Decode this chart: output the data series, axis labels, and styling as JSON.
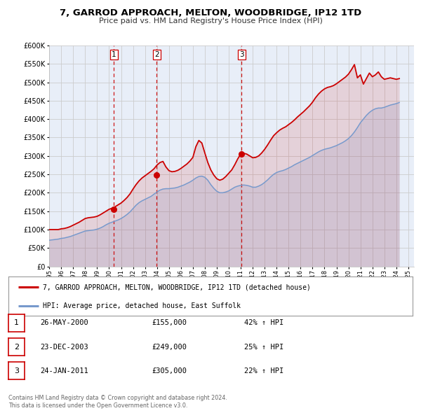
{
  "title": "7, GARROD APPROACH, MELTON, WOODBRIDGE, IP12 1TD",
  "subtitle": "Price paid vs. HM Land Registry's House Price Index (HPI)",
  "ylim": [
    0,
    600000
  ],
  "yticks": [
    0,
    50000,
    100000,
    150000,
    200000,
    250000,
    300000,
    350000,
    400000,
    450000,
    500000,
    550000,
    600000
  ],
  "xlim_start": 1995.0,
  "xlim_end": 2025.5,
  "background_color": "#ffffff",
  "plot_bg_color": "#e8eef8",
  "grid_color": "#cccccc",
  "red_line_color": "#cc0000",
  "blue_line_color": "#7799cc",
  "sale_marker_color": "#cc0000",
  "vline_color": "#cc0000",
  "legend_label_red": "7, GARROD APPROACH, MELTON, WOODBRIDGE, IP12 1TD (detached house)",
  "legend_label_blue": "HPI: Average price, detached house, East Suffolk",
  "sales": [
    {
      "num": 1,
      "year": 2000.4,
      "price": 155000,
      "label": "26-MAY-2000",
      "pct": "42%",
      "dir": "↑"
    },
    {
      "num": 2,
      "year": 2003.98,
      "price": 249000,
      "label": "23-DEC-2003",
      "pct": "25%",
      "dir": "↑"
    },
    {
      "num": 3,
      "year": 2011.07,
      "price": 305000,
      "label": "24-JAN-2011",
      "pct": "22%",
      "dir": "↑"
    }
  ],
  "footer1": "Contains HM Land Registry data © Crown copyright and database right 2024.",
  "footer2": "This data is licensed under the Open Government Licence v3.0.",
  "hpi_years": [
    1995,
    1995.25,
    1995.5,
    1995.75,
    1996,
    1996.25,
    1996.5,
    1996.75,
    1997,
    1997.25,
    1997.5,
    1997.75,
    1998,
    1998.25,
    1998.5,
    1998.75,
    1999,
    1999.25,
    1999.5,
    1999.75,
    2000,
    2000.25,
    2000.5,
    2000.75,
    2001,
    2001.25,
    2001.5,
    2001.75,
    2002,
    2002.25,
    2002.5,
    2002.75,
    2003,
    2003.25,
    2003.5,
    2003.75,
    2004,
    2004.25,
    2004.5,
    2004.75,
    2005,
    2005.25,
    2005.5,
    2005.75,
    2006,
    2006.25,
    2006.5,
    2006.75,
    2007,
    2007.25,
    2007.5,
    2007.75,
    2008,
    2008.25,
    2008.5,
    2008.75,
    2009,
    2009.25,
    2009.5,
    2009.75,
    2010,
    2010.25,
    2010.5,
    2010.75,
    2011,
    2011.25,
    2011.5,
    2011.75,
    2012,
    2012.25,
    2012.5,
    2012.75,
    2013,
    2013.25,
    2013.5,
    2013.75,
    2014,
    2014.25,
    2014.5,
    2014.75,
    2015,
    2015.25,
    2015.5,
    2015.75,
    2016,
    2016.25,
    2016.5,
    2016.75,
    2017,
    2017.25,
    2017.5,
    2017.75,
    2018,
    2018.25,
    2018.5,
    2018.75,
    2019,
    2019.25,
    2019.5,
    2019.75,
    2020,
    2020.25,
    2020.5,
    2020.75,
    2021,
    2021.25,
    2021.5,
    2021.75,
    2022,
    2022.25,
    2022.5,
    2022.75,
    2023,
    2023.25,
    2023.5,
    2023.75,
    2024,
    2024.25
  ],
  "hpi_values": [
    71000,
    72000,
    73000,
    74000,
    76000,
    77000,
    79000,
    81000,
    84000,
    87000,
    90000,
    93000,
    96000,
    97000,
    98000,
    99000,
    101000,
    104000,
    108000,
    113000,
    117000,
    120000,
    123000,
    126000,
    130000,
    135000,
    141000,
    148000,
    157000,
    166000,
    173000,
    178000,
    182000,
    186000,
    190000,
    196000,
    202000,
    207000,
    210000,
    211000,
    211000,
    212000,
    213000,
    215000,
    218000,
    221000,
    225000,
    229000,
    234000,
    240000,
    244000,
    245000,
    242000,
    234000,
    222000,
    212000,
    204000,
    200000,
    200000,
    202000,
    205000,
    210000,
    215000,
    218000,
    220000,
    221000,
    220000,
    218000,
    215000,
    215000,
    218000,
    222000,
    228000,
    235000,
    243000,
    250000,
    255000,
    258000,
    260000,
    263000,
    267000,
    271000,
    276000,
    280000,
    284000,
    288000,
    292000,
    296000,
    301000,
    306000,
    311000,
    315000,
    318000,
    320000,
    322000,
    325000,
    328000,
    332000,
    336000,
    341000,
    347000,
    355000,
    365000,
    377000,
    390000,
    400000,
    410000,
    418000,
    424000,
    428000,
    430000,
    430000,
    432000,
    435000,
    438000,
    440000,
    442000,
    445000
  ],
  "red_years": [
    1995,
    1995.25,
    1995.5,
    1995.75,
    1996,
    1996.25,
    1996.5,
    1996.75,
    1997,
    1997.25,
    1997.5,
    1997.75,
    1998,
    1998.25,
    1998.5,
    1998.75,
    1999,
    1999.25,
    1999.5,
    1999.75,
    2000,
    2000.25,
    2000.5,
    2000.75,
    2001,
    2001.25,
    2001.5,
    2001.75,
    2002,
    2002.25,
    2002.5,
    2002.75,
    2003,
    2003.25,
    2003.5,
    2003.75,
    2004,
    2004.25,
    2004.5,
    2004.75,
    2005,
    2005.25,
    2005.5,
    2005.75,
    2006,
    2006.25,
    2006.5,
    2006.75,
    2007,
    2007.25,
    2007.5,
    2007.75,
    2008,
    2008.25,
    2008.5,
    2008.75,
    2009,
    2009.25,
    2009.5,
    2009.75,
    2010,
    2010.25,
    2010.5,
    2010.75,
    2011,
    2011.25,
    2011.5,
    2011.75,
    2012,
    2012.25,
    2012.5,
    2012.75,
    2013,
    2013.25,
    2013.5,
    2013.75,
    2014,
    2014.25,
    2014.5,
    2014.75,
    2015,
    2015.25,
    2015.5,
    2015.75,
    2016,
    2016.25,
    2016.5,
    2016.75,
    2017,
    2017.25,
    2017.5,
    2017.75,
    2018,
    2018.25,
    2018.5,
    2018.75,
    2019,
    2019.25,
    2019.5,
    2019.75,
    2020,
    2020.25,
    2020.5,
    2020.75,
    2021,
    2021.25,
    2021.5,
    2021.75,
    2022,
    2022.25,
    2022.5,
    2022.75,
    2023,
    2023.25,
    2023.5,
    2023.75,
    2024,
    2024.25
  ],
  "red_values": [
    100000,
    100000,
    100000,
    100000,
    102000,
    103000,
    105000,
    108000,
    112000,
    116000,
    120000,
    125000,
    130000,
    132000,
    133000,
    134000,
    136000,
    140000,
    145000,
    150000,
    155000,
    158000,
    162000,
    167000,
    172000,
    179000,
    187000,
    197000,
    210000,
    222000,
    232000,
    240000,
    246000,
    252000,
    258000,
    265000,
    275000,
    282000,
    285000,
    270000,
    260000,
    257000,
    258000,
    261000,
    266000,
    272000,
    278000,
    286000,
    296000,
    325000,
    342000,
    335000,
    308000,
    282000,
    262000,
    248000,
    238000,
    234000,
    237000,
    244000,
    253000,
    262000,
    276000,
    292000,
    305000,
    307000,
    305000,
    300000,
    295000,
    296000,
    300000,
    308000,
    318000,
    330000,
    343000,
    355000,
    363000,
    370000,
    375000,
    379000,
    385000,
    391000,
    398000,
    406000,
    413000,
    420000,
    428000,
    436000,
    446000,
    458000,
    468000,
    476000,
    482000,
    486000,
    488000,
    491000,
    496000,
    502000,
    508000,
    514000,
    522000,
    534000,
    548000,
    512000,
    520000,
    495000,
    510000,
    525000,
    515000,
    520000,
    528000,
    515000,
    508000,
    510000,
    512000,
    510000,
    508000,
    510000
  ]
}
